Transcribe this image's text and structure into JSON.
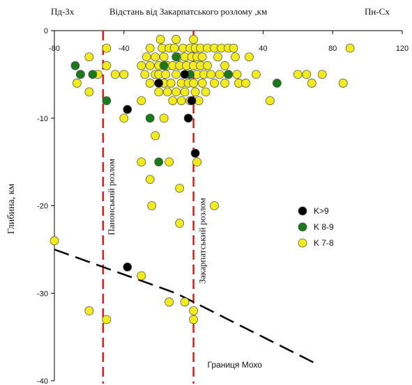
{
  "chart_data": {
    "type": "scatter",
    "title": "Відстань від Закарпатського розлому ,км",
    "corner_left": "Пд-Зх",
    "corner_right": "Пн-Сх",
    "ylabel": "Глибина, км",
    "xlim": [
      -80,
      120
    ],
    "ylim": [
      -40,
      0
    ],
    "x_ticks": [
      -80,
      -40,
      0,
      40,
      80,
      120
    ],
    "y_ticks": [
      0,
      -10,
      -20,
      -30,
      -40
    ],
    "grid": false,
    "legend_position": "right",
    "colors": {
      "black": "#000000",
      "green": "#1a7a1a",
      "yellow": "#f2ec1a",
      "fault": "#e01818",
      "moho": "#000000"
    },
    "series": [
      {
        "name": "K>9",
        "color": "#000000",
        "points": [
          [
            -38,
            -9
          ],
          [
            -20,
            -6
          ],
          [
            -5,
            -5
          ],
          [
            -3,
            -10
          ],
          [
            -1,
            -8
          ],
          [
            1,
            -14
          ],
          [
            -38,
            -27
          ]
        ]
      },
      {
        "name": "K 8-9",
        "color": "#1a7a1a",
        "points": [
          [
            -68,
            -4
          ],
          [
            -65,
            -5
          ],
          [
            -58,
            -5
          ],
          [
            -50,
            -8
          ],
          [
            -25,
            -10
          ],
          [
            -20,
            -15
          ],
          [
            -17,
            -4
          ],
          [
            -10,
            -3
          ],
          [
            -2,
            -5
          ],
          [
            20,
            -5
          ],
          [
            48,
            -6
          ]
        ]
      },
      {
        "name": "K 7-8",
        "color": "#f2ec1a",
        "points": [
          [
            -80,
            -24
          ],
          [
            -67,
            -6
          ],
          [
            -65,
            -5
          ],
          [
            -60,
            -3
          ],
          [
            -60,
            -7
          ],
          [
            -55,
            -5
          ],
          [
            -50,
            -2
          ],
          [
            -50,
            -4
          ],
          [
            -45,
            -5
          ],
          [
            -40,
            -10
          ],
          [
            -40,
            -5
          ],
          [
            -30,
            -4
          ],
          [
            -30,
            -8
          ],
          [
            -28,
            -5
          ],
          [
            -27,
            -3
          ],
          [
            -25,
            -2
          ],
          [
            -25,
            -4
          ],
          [
            -25,
            -6
          ],
          [
            -22,
            -3
          ],
          [
            -22,
            -5
          ],
          [
            -20,
            -4
          ],
          [
            -20,
            -5
          ],
          [
            -20,
            -7
          ],
          [
            -19,
            -1
          ],
          [
            -18,
            -2
          ],
          [
            -17,
            -3
          ],
          [
            -17,
            -6
          ],
          [
            -16,
            -5
          ],
          [
            -15,
            -4
          ],
          [
            -15,
            -7
          ],
          [
            -14,
            -2
          ],
          [
            -13,
            -6
          ],
          [
            -12,
            -4
          ],
          [
            -12,
            -8
          ],
          [
            -11,
            -2
          ],
          [
            -10,
            -5
          ],
          [
            -10,
            -7
          ],
          [
            -9,
            -3
          ],
          [
            -8,
            -4
          ],
          [
            -7,
            -6
          ],
          [
            -7,
            -8
          ],
          [
            -6,
            -2
          ],
          [
            -5,
            -3
          ],
          [
            -5,
            -7
          ],
          [
            -4,
            -4
          ],
          [
            -3,
            -6
          ],
          [
            -2,
            -2
          ],
          [
            -2,
            -8
          ],
          [
            -1,
            -3
          ],
          [
            0,
            -4
          ],
          [
            0,
            -6
          ],
          [
            1,
            -2
          ],
          [
            1,
            -7
          ],
          [
            2,
            -3
          ],
          [
            2,
            -5
          ],
          [
            3,
            -8
          ],
          [
            4,
            -2
          ],
          [
            4,
            -4
          ],
          [
            5,
            -6
          ],
          [
            5,
            -3
          ],
          [
            6,
            -5
          ],
          [
            7,
            -7
          ],
          [
            8,
            -2
          ],
          [
            8,
            -4
          ],
          [
            10,
            -5
          ],
          [
            12,
            -2
          ],
          [
            12,
            -6
          ],
          [
            14,
            -3
          ],
          [
            15,
            -5
          ],
          [
            16,
            -2
          ],
          [
            18,
            -4
          ],
          [
            18,
            -6
          ],
          [
            20,
            -2
          ],
          [
            20,
            -5
          ],
          [
            23,
            -2
          ],
          [
            24,
            -3
          ],
          [
            25,
            -5
          ],
          [
            26,
            -6
          ],
          [
            30,
            -6
          ],
          [
            32,
            -3
          ],
          [
            36,
            -5
          ],
          [
            44,
            -8
          ],
          [
            60,
            -5
          ],
          [
            65,
            -5
          ],
          [
            68,
            -6
          ],
          [
            74,
            -5
          ],
          [
            86,
            -6
          ],
          [
            90,
            -2
          ],
          [
            -40,
            -5
          ],
          [
            -30,
            -15
          ],
          [
            -25,
            -17
          ],
          [
            -22,
            -12
          ],
          [
            -24,
            -20
          ],
          [
            -14,
            -15
          ],
          [
            -8,
            -18
          ],
          [
            -8,
            -22
          ],
          [
            2,
            -15
          ],
          [
            12,
            -20
          ],
          [
            -30,
            -28
          ],
          [
            -60,
            -32
          ],
          [
            -50,
            -33
          ],
          [
            -14,
            -31
          ],
          [
            -5,
            -31
          ],
          [
            0,
            -32
          ],
          [
            0,
            -33
          ],
          [
            -17,
            -10
          ],
          [
            -10,
            -1
          ],
          [
            0,
            -1
          ]
        ]
      }
    ],
    "annotations": {
      "panon_fault": {
        "text": "Панонський розлом",
        "x": -52
      },
      "zakarpat_fault": {
        "text": "Закарпатський розлом",
        "x": 0
      },
      "moho": {
        "text": "Границя Мохо",
        "line": [
          [
            -80,
            -25
          ],
          [
            -10,
            -30
          ],
          [
            70,
            -38
          ]
        ],
        "label_x": 8,
        "label_y": -38.5
      }
    }
  }
}
